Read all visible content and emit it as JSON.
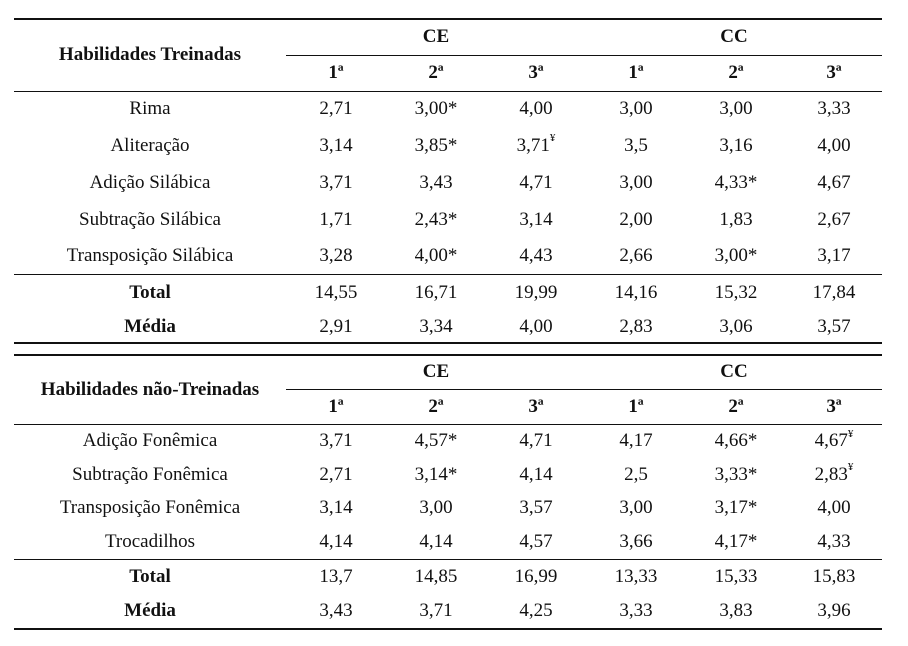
{
  "tables": [
    {
      "header_label": "Habilidades Treinadas",
      "groups": [
        "CE",
        "CC"
      ],
      "subcols": [
        "1ª",
        "2ª",
        "3ª",
        "1ª",
        "2ª",
        "3ª"
      ],
      "rows": [
        {
          "label": "Rima",
          "values": [
            "2,71",
            "3,00*",
            "4,00",
            "3,00",
            "3,00",
            "3,33"
          ]
        },
        {
          "label": "Aliteração",
          "values": [
            "3,14",
            "3,85*",
            "3,71¥",
            "3,5",
            "3,16",
            "4,00"
          ]
        },
        {
          "label": "Adição Silábica",
          "values": [
            "3,71",
            "3,43",
            "4,71",
            "3,00",
            "4,33*",
            "4,67"
          ]
        },
        {
          "label": "Subtração Silábica",
          "values": [
            "1,71",
            "2,43*",
            "3,14",
            "2,00",
            "1,83",
            "2,67"
          ]
        },
        {
          "label": "Transposição Silábica",
          "values": [
            "3,28",
            "4,00*",
            "4,43",
            "2,66",
            "3,00*",
            "3,17"
          ]
        }
      ],
      "total": {
        "label": "Total",
        "values": [
          "14,55",
          "16,71",
          "19,99",
          "14,16",
          "15,32",
          "17,84"
        ]
      },
      "media": {
        "label": "Média",
        "values": [
          "2,91",
          "3,34",
          "4,00",
          "2,83",
          "3,06",
          "3,57"
        ]
      }
    },
    {
      "header_label": "Habilidades não-Treinadas",
      "groups": [
        "CE",
        "CC"
      ],
      "subcols": [
        "1ª",
        "2ª",
        "3ª",
        "1ª",
        "2ª",
        "3ª"
      ],
      "rows": [
        {
          "label": "Adição Fonêmica",
          "values": [
            "3,71",
            "4,57*",
            "4,71",
            "4,17",
            "4,66*",
            "4,67¥"
          ]
        },
        {
          "label": "Subtração Fonêmica",
          "values": [
            "2,71",
            "3,14*",
            "4,14",
            "2,5",
            "3,33*",
            "2,83¥"
          ]
        },
        {
          "label": "Transposição Fonêmica",
          "values": [
            "3,14",
            "3,00",
            "3,57",
            "3,00",
            "3,17*",
            "4,00"
          ]
        },
        {
          "label": "Trocadilhos",
          "values": [
            "4,14",
            "4,14",
            "4,57",
            "3,66",
            "4,17*",
            "4,33"
          ]
        }
      ],
      "total": {
        "label": "Total",
        "values": [
          "13,7",
          "14,85",
          "16,99",
          "13,33",
          "15,33",
          "15,83"
        ]
      },
      "media": {
        "label": "Média",
        "values": [
          "3,43",
          "3,71",
          "4,25",
          "3,33",
          "3,83",
          "3,96"
        ]
      }
    }
  ]
}
